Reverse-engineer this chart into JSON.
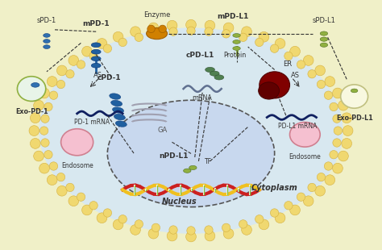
{
  "bg_color": "#f0f0c8",
  "cell_interior_color": "#d8e8f0",
  "membrane_bead_color": "#f0d870",
  "membrane_bead_outline": "#d4b040",
  "labels": {
    "sPD1_left": "sPD-1",
    "mPD1": "mPD-1",
    "Enzyme": "Enzyme",
    "mPDL1": "mPD-L1",
    "sPDL1": "sPD-L1",
    "ExoPD1": "Exo-PD-1",
    "ExoPDL1": "Exo-PD-L1",
    "cPD1": "cPD-1",
    "cPDL1": "cPD-L1",
    "Protein": "Protein",
    "mRNA_label": "mRNA",
    "GA": "GA",
    "ER": "ER",
    "AS_left": "AS",
    "AS_right": "AS",
    "PD1_mRNA": "PD-1 mRNA",
    "PDL1_mRNA": "PD-L1 mRNA",
    "Endosome_left": "Endosome",
    "Endosome_right": "Endosome",
    "nPDL1": "nPD-L1",
    "TF": "TF",
    "nucleus_label": "Nucleus",
    "cytoplasm_label": "Cytoplasm"
  },
  "colors": {
    "blue_protein": "#2060a0",
    "green_protein": "#80a030",
    "orange_enzyme": "#d08000",
    "dark_red": "#8B0000",
    "dark_blue_mrna": "#102060",
    "dna_red": "#cc2020",
    "dna_yellow": "#f0c020",
    "dna_green": "#40a040",
    "arrow_color": "#333333"
  }
}
